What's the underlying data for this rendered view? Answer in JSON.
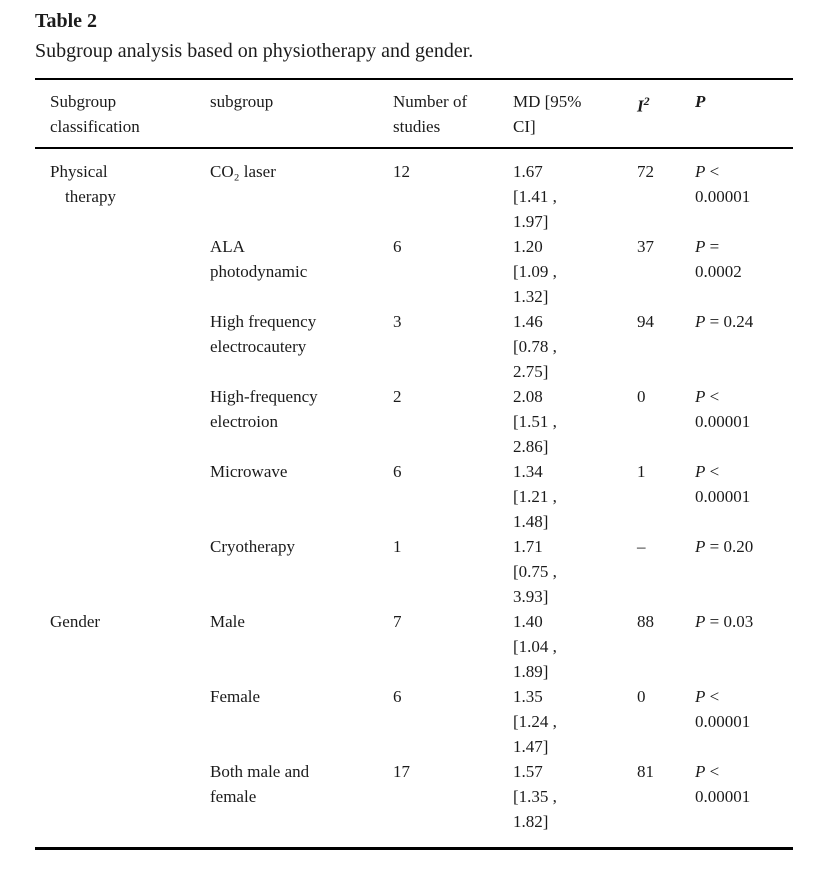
{
  "title": "Table 2",
  "caption": "Subgroup analysis based on physiotherapy and gender.",
  "columns": {
    "classification": "Subgroup classification",
    "subgroup": "subgroup",
    "n_studies": "Number of studies",
    "md_ci": "MD [95% CI]",
    "i2_base": "I",
    "i2_sup": "2",
    "p": "P"
  },
  "rows": [
    {
      "classification": "Physical therapy",
      "subgroup": "CO₂ laser",
      "n_studies": "12",
      "md": {
        "value": "1.67",
        "ci_low": "1.41",
        "ci_high": "1.97"
      },
      "i2": "72",
      "p": {
        "op": "<",
        "value": "0.00001",
        "two_line": true
      }
    },
    {
      "classification": "",
      "subgroup": "ALA photodynamic",
      "n_studies": "6",
      "md": {
        "value": "1.20",
        "ci_low": "1.09",
        "ci_high": "1.32"
      },
      "i2": "37",
      "p": {
        "op": "=",
        "value": "0.0002",
        "two_line": true
      }
    },
    {
      "classification": "",
      "subgroup": "High frequency electrocautery",
      "n_studies": "3",
      "md": {
        "value": "1.46",
        "ci_low": "0.78",
        "ci_high": "2.75"
      },
      "i2": "94",
      "p": {
        "op": "=",
        "value": "0.24",
        "two_line": false
      }
    },
    {
      "classification": "",
      "subgroup": "High-frequency electroion",
      "n_studies": "2",
      "md": {
        "value": "2.08",
        "ci_low": "1.51",
        "ci_high": "2.86"
      },
      "i2": "0",
      "p": {
        "op": "<",
        "value": "0.00001",
        "two_line": true
      }
    },
    {
      "classification": "",
      "subgroup": "Microwave",
      "n_studies": "6",
      "md": {
        "value": "1.34",
        "ci_low": "1.21",
        "ci_high": "1.48"
      },
      "i2": "1",
      "p": {
        "op": "<",
        "value": "0.00001",
        "two_line": true
      }
    },
    {
      "classification": "",
      "subgroup": "Cryotherapy",
      "n_studies": "1",
      "md": {
        "value": "1.71",
        "ci_low": "0.75",
        "ci_high": "3.93"
      },
      "i2": "–",
      "p": {
        "op": "=",
        "value": "0.20",
        "two_line": false
      }
    },
    {
      "classification": "Gender",
      "subgroup": "Male",
      "n_studies": "7",
      "md": {
        "value": "1.40",
        "ci_low": "1.04",
        "ci_high": "1.89"
      },
      "i2": "88",
      "p": {
        "op": "=",
        "value": "0.03",
        "two_line": false
      }
    },
    {
      "classification": "",
      "subgroup": "Female",
      "n_studies": "6",
      "md": {
        "value": "1.35",
        "ci_low": "1.24",
        "ci_high": "1.47"
      },
      "i2": "0",
      "p": {
        "op": "<",
        "value": "0.00001",
        "two_line": true
      }
    },
    {
      "classification": "",
      "subgroup": "Both male and female",
      "n_studies": "17",
      "md": {
        "value": "1.57",
        "ci_low": "1.35",
        "ci_high": "1.82"
      },
      "i2": "81",
      "p": {
        "op": "<",
        "value": "0.00001",
        "two_line": true
      }
    }
  ]
}
